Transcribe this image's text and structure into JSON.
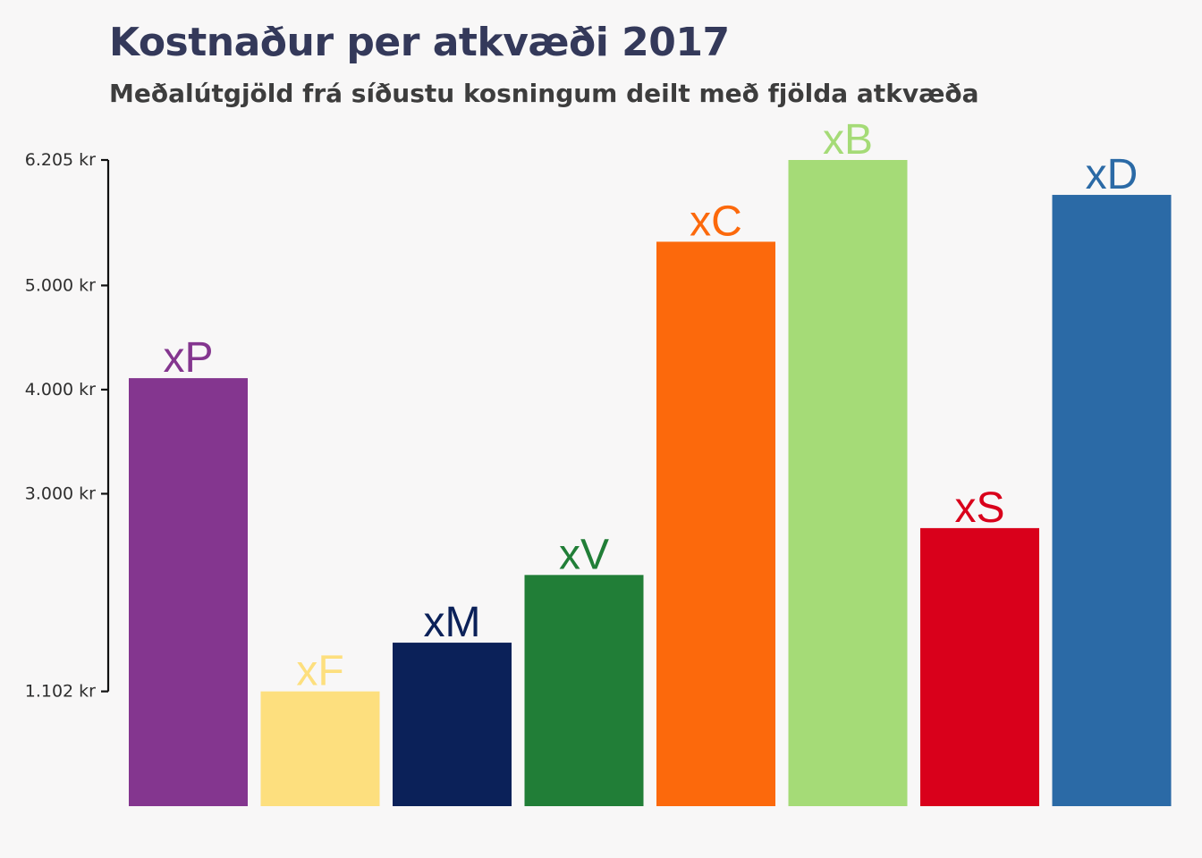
{
  "chart_data": {
    "type": "bar",
    "title": "Kostnaður per atkvæði 2017",
    "subtitle": "Meðalútgjöld frá síðustu kosningum deilt með fjölda atkvæða",
    "xlabel": "",
    "ylabel": "",
    "categories": [
      "xP",
      "xF",
      "xM",
      "xV",
      "xC",
      "xB",
      "xS",
      "xD"
    ],
    "values": [
      4110,
      1102,
      1570,
      2220,
      5420,
      6205,
      2670,
      5870
    ],
    "colors": [
      "#84368f",
      "#fddf7e",
      "#0b2159",
      "#217e37",
      "#fc690c",
      "#a5db77",
      "#d9001b",
      "#2b6aa6"
    ],
    "y_ticks": [
      1102,
      3000,
      4000,
      5000,
      6205
    ],
    "y_tick_labels": [
      "1.102 kr",
      "3.000 kr",
      "4.000 kr",
      "5.000 kr",
      "6.205 kr"
    ],
    "ylim": [
      0,
      6205
    ],
    "grid": false,
    "legend": "none"
  }
}
